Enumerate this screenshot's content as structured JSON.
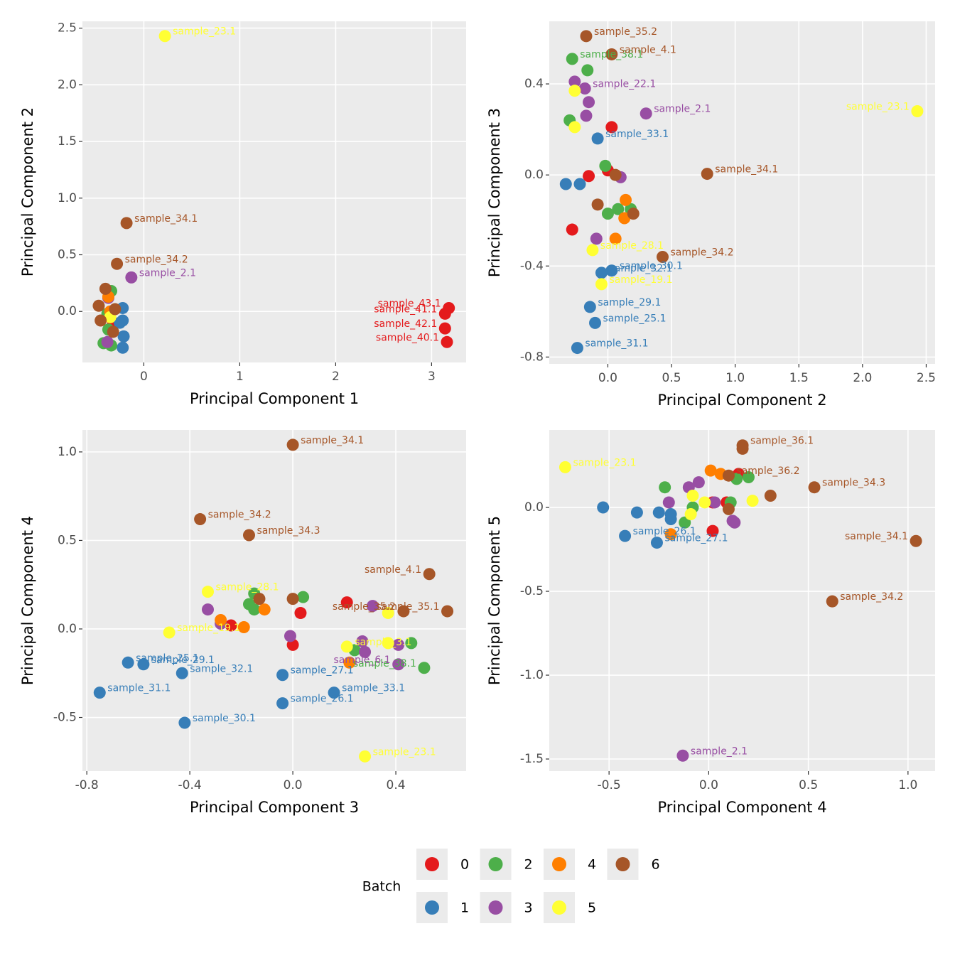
{
  "chart_data": [
    {
      "type": "scatter",
      "x_label": "Principal Component 1",
      "y_label": "Principal Component 2",
      "xlim": [
        -0.64,
        3.36
      ],
      "ylim": [
        -0.45,
        2.56
      ],
      "xticks": [
        0,
        1,
        2,
        3
      ],
      "yticks": [
        {
          "value": 0,
          "label": "0.0"
        },
        0.5,
        {
          "value": 1,
          "label": "1.0"
        },
        1.5,
        {
          "value": 2,
          "label": "2.0"
        },
        2.5
      ],
      "grid": true,
      "series": [
        {
          "name": "0",
          "color": "#e41a1c",
          "x": [
            3.18,
            3.14,
            3.14,
            3.16,
            -0.32
          ],
          "y": [
            0.03,
            -0.02,
            -0.15,
            -0.27,
            -0.1
          ],
          "labels": [
            "sample_43.1",
            "sample_41.1",
            "sample_42.1",
            "sample_40.1",
            null
          ]
        },
        {
          "name": "1",
          "color": "#377eb8",
          "x": [
            -0.22,
            -0.22,
            -0.21,
            -0.22,
            -0.25
          ],
          "y": [
            0.03,
            -0.08,
            -0.22,
            -0.32,
            -0.1
          ],
          "labels": [
            null,
            null,
            null,
            null,
            null
          ]
        },
        {
          "name": "2",
          "color": "#4daf4a",
          "x": [
            -0.34,
            -0.38,
            -0.37,
            -0.42,
            -0.34
          ],
          "y": [
            0.18,
            -0.02,
            -0.16,
            -0.28,
            -0.3
          ],
          "labels": [
            null,
            null,
            null,
            null,
            null
          ]
        },
        {
          "name": "3",
          "color": "#984ea3",
          "x": [
            -0.13,
            -0.37,
            -0.38
          ],
          "y": [
            0.3,
            0.12,
            -0.27
          ],
          "labels": [
            "sample_2.1",
            null,
            null
          ]
        },
        {
          "name": "4",
          "color": "#ff7f00",
          "x": [
            -0.37,
            -0.35
          ],
          "y": [
            0.13,
            0.0
          ],
          "labels": [
            null,
            null
          ]
        },
        {
          "name": "5",
          "color": "#ffff33",
          "x": [
            0.22,
            -0.35
          ],
          "y": [
            2.43,
            -0.05
          ],
          "labels": [
            "sample_23.1",
            null
          ]
        },
        {
          "name": "6",
          "color": "#a65628",
          "x": [
            -0.18,
            -0.28,
            -0.4,
            -0.47,
            -0.45,
            -0.3,
            -0.32
          ],
          "y": [
            0.78,
            0.42,
            0.2,
            0.05,
            -0.08,
            0.02,
            -0.18
          ],
          "labels": [
            "sample_34.1",
            "sample_34.2",
            null,
            null,
            null,
            null,
            null
          ]
        }
      ]
    },
    {
      "type": "scatter",
      "x_label": "Principal Component 2",
      "y_label": "Principal Component 3",
      "xlim": [
        -0.46,
        2.57
      ],
      "ylim": [
        -0.83,
        0.675
      ],
      "xticks": [
        {
          "value": 0,
          "label": "0.0"
        },
        0.5,
        {
          "value": 1,
          "label": "1.0"
        },
        1.5,
        {
          "value": 2,
          "label": "2.0"
        },
        2.5
      ],
      "yticks": [
        -0.8,
        -0.4,
        {
          "value": 0,
          "label": "0.0"
        },
        0.4
      ],
      "grid": true,
      "series": [
        {
          "name": "0",
          "color": "#e41a1c",
          "x": [
            0.03,
            -0.15,
            -0.28,
            0.0
          ],
          "y": [
            0.21,
            -0.005,
            -0.24,
            0.02
          ],
          "labels": [
            null,
            null,
            null,
            null
          ]
        },
        {
          "name": "1",
          "color": "#377eb8",
          "x": [
            -0.08,
            -0.33,
            -0.22,
            -0.05,
            0.03,
            -0.14,
            -0.1,
            -0.24
          ],
          "y": [
            0.16,
            -0.04,
            -0.04,
            -0.43,
            -0.42,
            -0.58,
            -0.65,
            -0.76
          ],
          "labels": [
            "sample_33.1",
            null,
            null,
            "sample_32.1",
            "sample_30.1",
            "sample_29.1",
            "sample_25.1",
            "sample_31.1"
          ]
        },
        {
          "name": "2",
          "color": "#4daf4a",
          "x": [
            -0.28,
            -0.16,
            -0.3,
            -0.02,
            0.0,
            0.08,
            0.18
          ],
          "y": [
            0.51,
            0.46,
            0.24,
            0.04,
            -0.17,
            -0.15,
            -0.15
          ],
          "labels": [
            "sample_38.1",
            null,
            null,
            null,
            null,
            null,
            null
          ]
        },
        {
          "name": "3",
          "color": "#984ea3",
          "x": [
            0.3,
            -0.26,
            -0.18,
            -0.15,
            -0.17,
            0.1,
            -0.09
          ],
          "y": [
            0.27,
            0.41,
            0.38,
            0.32,
            0.26,
            -0.01,
            -0.28
          ],
          "labels": [
            "sample_2.1",
            null,
            "sample_22.1",
            null,
            null,
            null,
            null
          ]
        },
        {
          "name": "4",
          "color": "#ff7f00",
          "x": [
            0.14,
            0.13,
            0.06
          ],
          "y": [
            -0.11,
            -0.19,
            -0.28
          ],
          "labels": [
            null,
            null,
            null
          ]
        },
        {
          "name": "5",
          "color": "#ffff33",
          "x": [
            2.43,
            -0.26,
            -0.26,
            -0.05,
            -0.12
          ],
          "y": [
            0.28,
            0.37,
            0.21,
            -0.48,
            -0.33
          ],
          "labels": [
            "sample_23.1",
            null,
            null,
            "sample_19.1",
            "sample_28.1"
          ]
        },
        {
          "name": "6",
          "color": "#a65628",
          "x": [
            -0.17,
            0.03,
            0.78,
            0.43,
            -0.08,
            0.06,
            0.2
          ],
          "y": [
            0.61,
            0.53,
            0.005,
            -0.36,
            -0.13,
            0.0,
            -0.17
          ],
          "labels": [
            "sample_35.2",
            "sample_4.1",
            "sample_34.1",
            "sample_34.2",
            null,
            null,
            null
          ]
        }
      ]
    },
    {
      "type": "scatter",
      "x_label": "Principal Component 3",
      "y_label": "Principal Component 4",
      "xlim": [
        -0.817,
        0.673
      ],
      "ylim": [
        -0.803,
        1.124
      ],
      "xticks": [
        -0.8,
        -0.4,
        {
          "value": 0,
          "label": "0.0"
        },
        0.4
      ],
      "yticks": [
        -0.5,
        {
          "value": 0,
          "label": "0.0"
        },
        0.5,
        {
          "value": 1,
          "label": "1.0"
        }
      ],
      "grid": true,
      "series": [
        {
          "name": "0",
          "color": "#e41a1c",
          "x": [
            0.21,
            0.03,
            0.0,
            -0.24
          ],
          "y": [
            0.15,
            0.09,
            -0.09,
            0.02
          ],
          "labels": [
            null,
            null,
            null,
            null
          ]
        },
        {
          "name": "1",
          "color": "#377eb8",
          "x": [
            -0.64,
            -0.75,
            -0.58,
            -0.43,
            -0.42,
            -0.04,
            -0.04,
            0.16
          ],
          "y": [
            -0.19,
            -0.36,
            -0.2,
            -0.25,
            -0.53,
            -0.26,
            -0.42,
            -0.36
          ],
          "labels": [
            "sample_25.1",
            "sample_31.1",
            "sample_29.1",
            "sample_32.1",
            "sample_30.1",
            "sample_27.1",
            "sample_26.1",
            "sample_33.1"
          ]
        },
        {
          "name": "2",
          "color": "#4daf4a",
          "x": [
            -0.15,
            -0.17,
            -0.15,
            0.04,
            0.24,
            0.46,
            0.51
          ],
          "y": [
            0.2,
            0.14,
            0.11,
            0.18,
            -0.12,
            -0.08,
            -0.22
          ],
          "labels": [
            null,
            null,
            null,
            null,
            null,
            null,
            "sample_38.1"
          ]
        },
        {
          "name": "3",
          "color": "#984ea3",
          "x": [
            -0.33,
            -0.28,
            -0.01,
            0.27,
            0.28,
            0.31,
            0.41,
            0.41
          ],
          "y": [
            0.11,
            0.03,
            -0.04,
            -0.07,
            -0.13,
            0.13,
            -0.09,
            -0.2
          ],
          "labels": [
            null,
            null,
            null,
            null,
            null,
            null,
            null,
            "sample_6.1"
          ]
        },
        {
          "name": "4",
          "color": "#ff7f00",
          "x": [
            -0.28,
            -0.19,
            -0.11,
            0.22
          ],
          "y": [
            0.05,
            0.01,
            0.11,
            -0.19
          ],
          "labels": [
            null,
            null,
            null,
            null
          ]
        },
        {
          "name": "5",
          "color": "#ffff33",
          "x": [
            -0.33,
            -0.48,
            0.21,
            0.37,
            0.37,
            0.28
          ],
          "y": [
            0.21,
            -0.02,
            -0.1,
            0.09,
            -0.08,
            -0.72
          ],
          "labels": [
            "sample_28.1",
            "sample_19.1",
            "sample_3.1",
            null,
            null,
            "sample_23.1"
          ]
        },
        {
          "name": "6",
          "color": "#a65628",
          "x": [
            0.0,
            -0.36,
            -0.17,
            0.53,
            0.6,
            0.43,
            -0.13,
            0.0
          ],
          "y": [
            1.04,
            0.62,
            0.53,
            0.31,
            0.1,
            0.1,
            0.17,
            0.17
          ],
          "labels": [
            "sample_34.1",
            "sample_34.2",
            "sample_34.3",
            "sample_4.1",
            "sample_35.1",
            "sample_35.2",
            null,
            null
          ]
        }
      ]
    },
    {
      "type": "scatter",
      "x_label": "Principal Component 4",
      "y_label": "Principal Component 5",
      "xlim": [
        -0.8,
        1.136
      ],
      "ylim": [
        -1.572,
        0.462
      ],
      "xticks": [
        -0.5,
        {
          "value": 0,
          "label": "0.0"
        },
        0.5,
        {
          "value": 1,
          "label": "1.0"
        }
      ],
      "yticks": [
        -1.5,
        {
          "value": -1,
          "label": "-1.0"
        },
        -0.5,
        {
          "value": 0,
          "label": "0.0"
        }
      ],
      "grid": true,
      "series": [
        {
          "name": "0",
          "color": "#e41a1c",
          "x": [
            0.02,
            0.09,
            0.15,
            0.02
          ],
          "y": [
            0.03,
            0.03,
            0.2,
            -0.14
          ],
          "labels": [
            null,
            null,
            null,
            null
          ]
        },
        {
          "name": "1",
          "color": "#377eb8",
          "x": [
            -0.53,
            -0.36,
            -0.25,
            -0.19,
            -0.19,
            -0.42,
            -0.26
          ],
          "y": [
            0.0,
            -0.03,
            -0.03,
            -0.04,
            -0.07,
            -0.17,
            -0.21
          ],
          "labels": [
            null,
            null,
            null,
            null,
            null,
            "sample_26.1",
            "sample_27.1"
          ]
        },
        {
          "name": "2",
          "color": "#4daf4a",
          "x": [
            -0.22,
            -0.08,
            -0.12,
            0.14,
            0.2,
            0.11
          ],
          "y": [
            0.12,
            0.0,
            -0.09,
            0.17,
            0.18,
            0.03
          ],
          "labels": [
            null,
            null,
            null,
            null,
            null,
            null
          ]
        },
        {
          "name": "3",
          "color": "#984ea3",
          "x": [
            -0.13,
            -0.2,
            -0.1,
            -0.05,
            0.03,
            0.12,
            0.13
          ],
          "y": [
            -1.48,
            0.03,
            0.12,
            0.15,
            0.03,
            -0.08,
            -0.09
          ],
          "labels": [
            "sample_2.1",
            null,
            null,
            null,
            null,
            null,
            null
          ]
        },
        {
          "name": "4",
          "color": "#ff7f00",
          "x": [
            0.01,
            0.06,
            -0.19
          ],
          "y": [
            0.22,
            0.2,
            -0.16
          ],
          "labels": [
            null,
            null,
            null
          ]
        },
        {
          "name": "5",
          "color": "#ffff33",
          "x": [
            -0.72,
            -0.08,
            -0.09,
            -0.02,
            0.22
          ],
          "y": [
            0.24,
            0.07,
            -0.04,
            0.03,
            0.04
          ],
          "labels": [
            "sample_23.1",
            null,
            null,
            null,
            null
          ]
        },
        {
          "name": "6",
          "color": "#a65628",
          "x": [
            0.17,
            0.17,
            0.1,
            0.1,
            0.31,
            0.53,
            1.04,
            0.62
          ],
          "y": [
            0.37,
            0.35,
            0.19,
            -0.01,
            0.07,
            0.12,
            -0.2,
            -0.56
          ],
          "labels": [
            "sample_36.1",
            null,
            "sample_36.2",
            null,
            null,
            "sample_34.3",
            "sample_34.1",
            "sample_34.2"
          ]
        }
      ]
    }
  ],
  "legend": {
    "title": "Batch"
  }
}
